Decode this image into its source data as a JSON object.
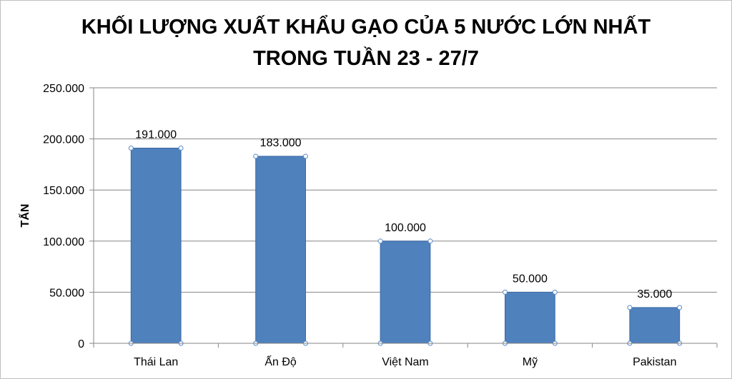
{
  "chart_data": {
    "type": "bar",
    "title_line1": "KHỐI LƯỢNG XUẤT KHẨU GẠO CỦA 5 NƯỚC LỚN NHẤT",
    "title_line2": "TRONG TUẦN 23 - 27/7",
    "ylabel": "TẤN",
    "xlabel": "",
    "categories": [
      "Thái Lan",
      "Ấn Độ",
      "Việt Nam",
      "Mỹ",
      "Pakistan"
    ],
    "values": [
      191000,
      183000,
      100000,
      50000,
      35000
    ],
    "data_labels": [
      "191.000",
      "183.000",
      "100.000",
      "50.000",
      "35.000"
    ],
    "ylim": [
      0,
      250000
    ],
    "y_ticks": [
      0,
      50000,
      100000,
      150000,
      200000,
      250000
    ],
    "y_tick_labels": [
      "0",
      "50.000",
      "100.000",
      "150.000",
      "200.000",
      "250.000"
    ],
    "grid": true,
    "legend": "none",
    "bar_color": "#4f81bd",
    "bar_border_color": "#3a68a3"
  }
}
